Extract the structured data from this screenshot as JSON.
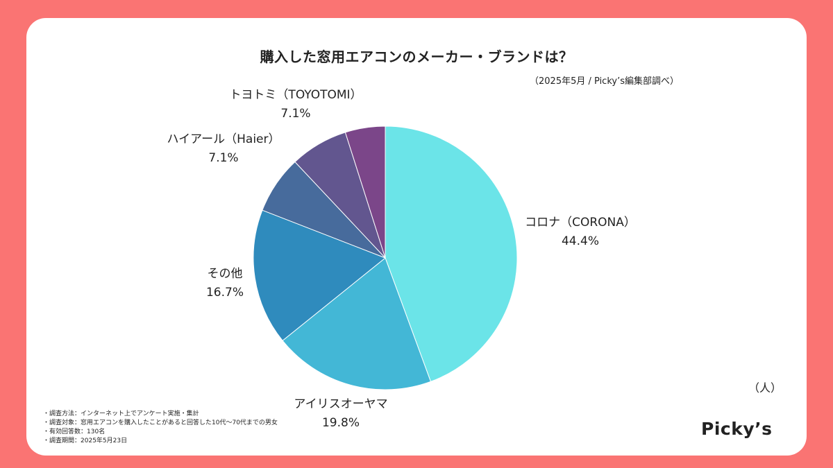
{
  "title": "購入した窓用エアコンのメーカー・ブランドは？",
  "source_note": "（2025年5月 / Picky’s編集部調べ）",
  "unit": "（人）",
  "notes": [
    "調査方法：インターネット上でアンケート実施・集計",
    "調査対象：窓用エアコンを購入したことがあると回答した10代〜70代までの男女",
    "有効回答数：130名",
    "調査期間：2025年5月23日"
  ],
  "logo": "Picky’s",
  "chart_data": {
    "type": "pie",
    "title": "購入した窓用エアコンのメーカー・ブランドは？",
    "slices": [
      {
        "label": "コロナ（CORONA）",
        "value": 44.4,
        "display": "44.4%",
        "color": "#6be4e8"
      },
      {
        "label": "アイリスオーヤマ",
        "value": 19.8,
        "display": "19.8%",
        "color": "#43b7d6"
      },
      {
        "label": "その他",
        "value": 16.7,
        "display": "16.7%",
        "color": "#2f8bbd"
      },
      {
        "label": "ハイアール（Haier）",
        "value": 7.1,
        "display": "7.1%",
        "color": "#476b9c"
      },
      {
        "label": "トヨトミ（TOYOTOMI）",
        "value": 7.1,
        "display": "7.1%",
        "color": "#62568f"
      },
      {
        "label": "",
        "value": 4.9,
        "display": "",
        "color": "#7b4689"
      }
    ]
  }
}
